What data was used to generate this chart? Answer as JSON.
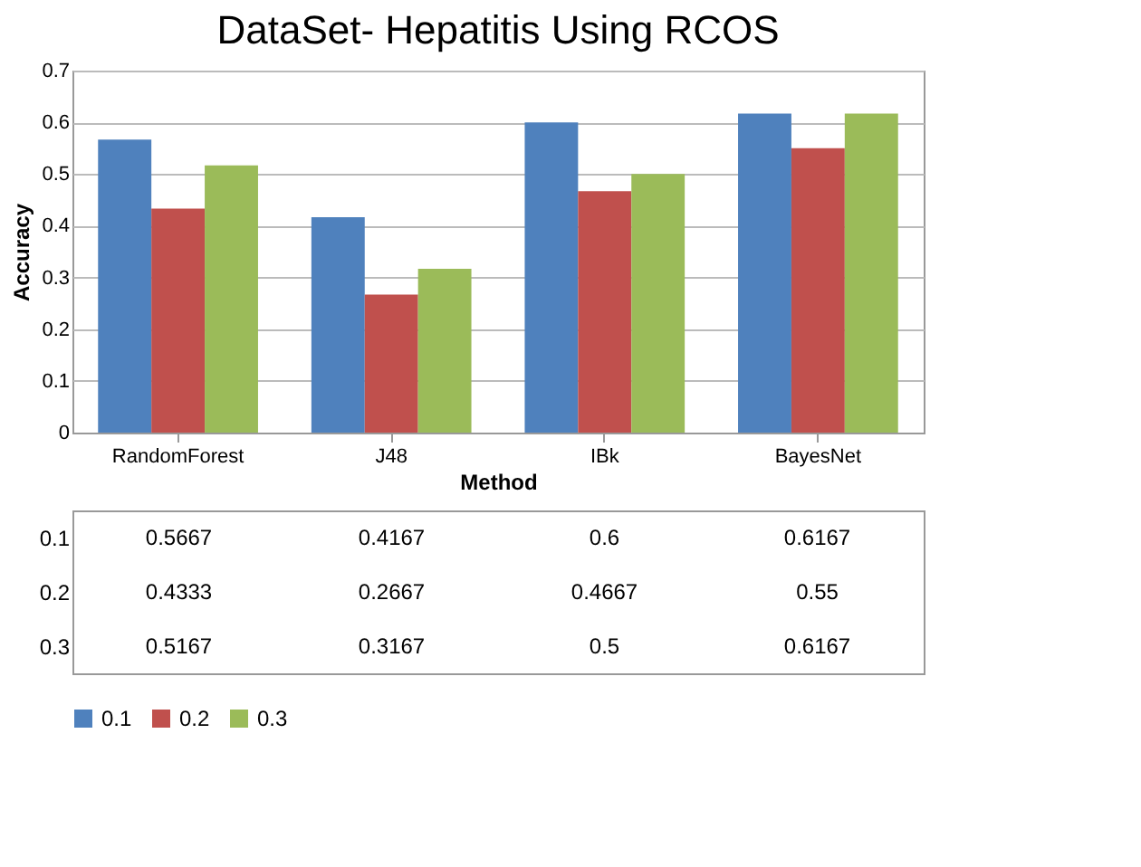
{
  "chart_data": {
    "type": "bar",
    "title": "DataSet- Hepatitis Using RCOS",
    "xlabel": "Method",
    "ylabel": "Accuracy",
    "categories": [
      "RandomForest",
      "J48",
      "IBk",
      "BayesNet"
    ],
    "series": [
      {
        "name": "0.1",
        "color": "#4f81bd",
        "values": [
          0.5667,
          0.4167,
          0.6,
          0.6167
        ]
      },
      {
        "name": "0.2",
        "color": "#c0504d",
        "values": [
          0.4333,
          0.2667,
          0.4667,
          0.55
        ]
      },
      {
        "name": "0.3",
        "color": "#9bbb59",
        "values": [
          0.5167,
          0.3167,
          0.5,
          0.6167
        ]
      }
    ],
    "ylim": [
      0,
      0.7
    ],
    "yticks": [
      0,
      0.1,
      0.2,
      0.3,
      0.4,
      0.5,
      0.6,
      0.7
    ],
    "grid": "y",
    "legend": "bottom",
    "data_labels": true
  }
}
